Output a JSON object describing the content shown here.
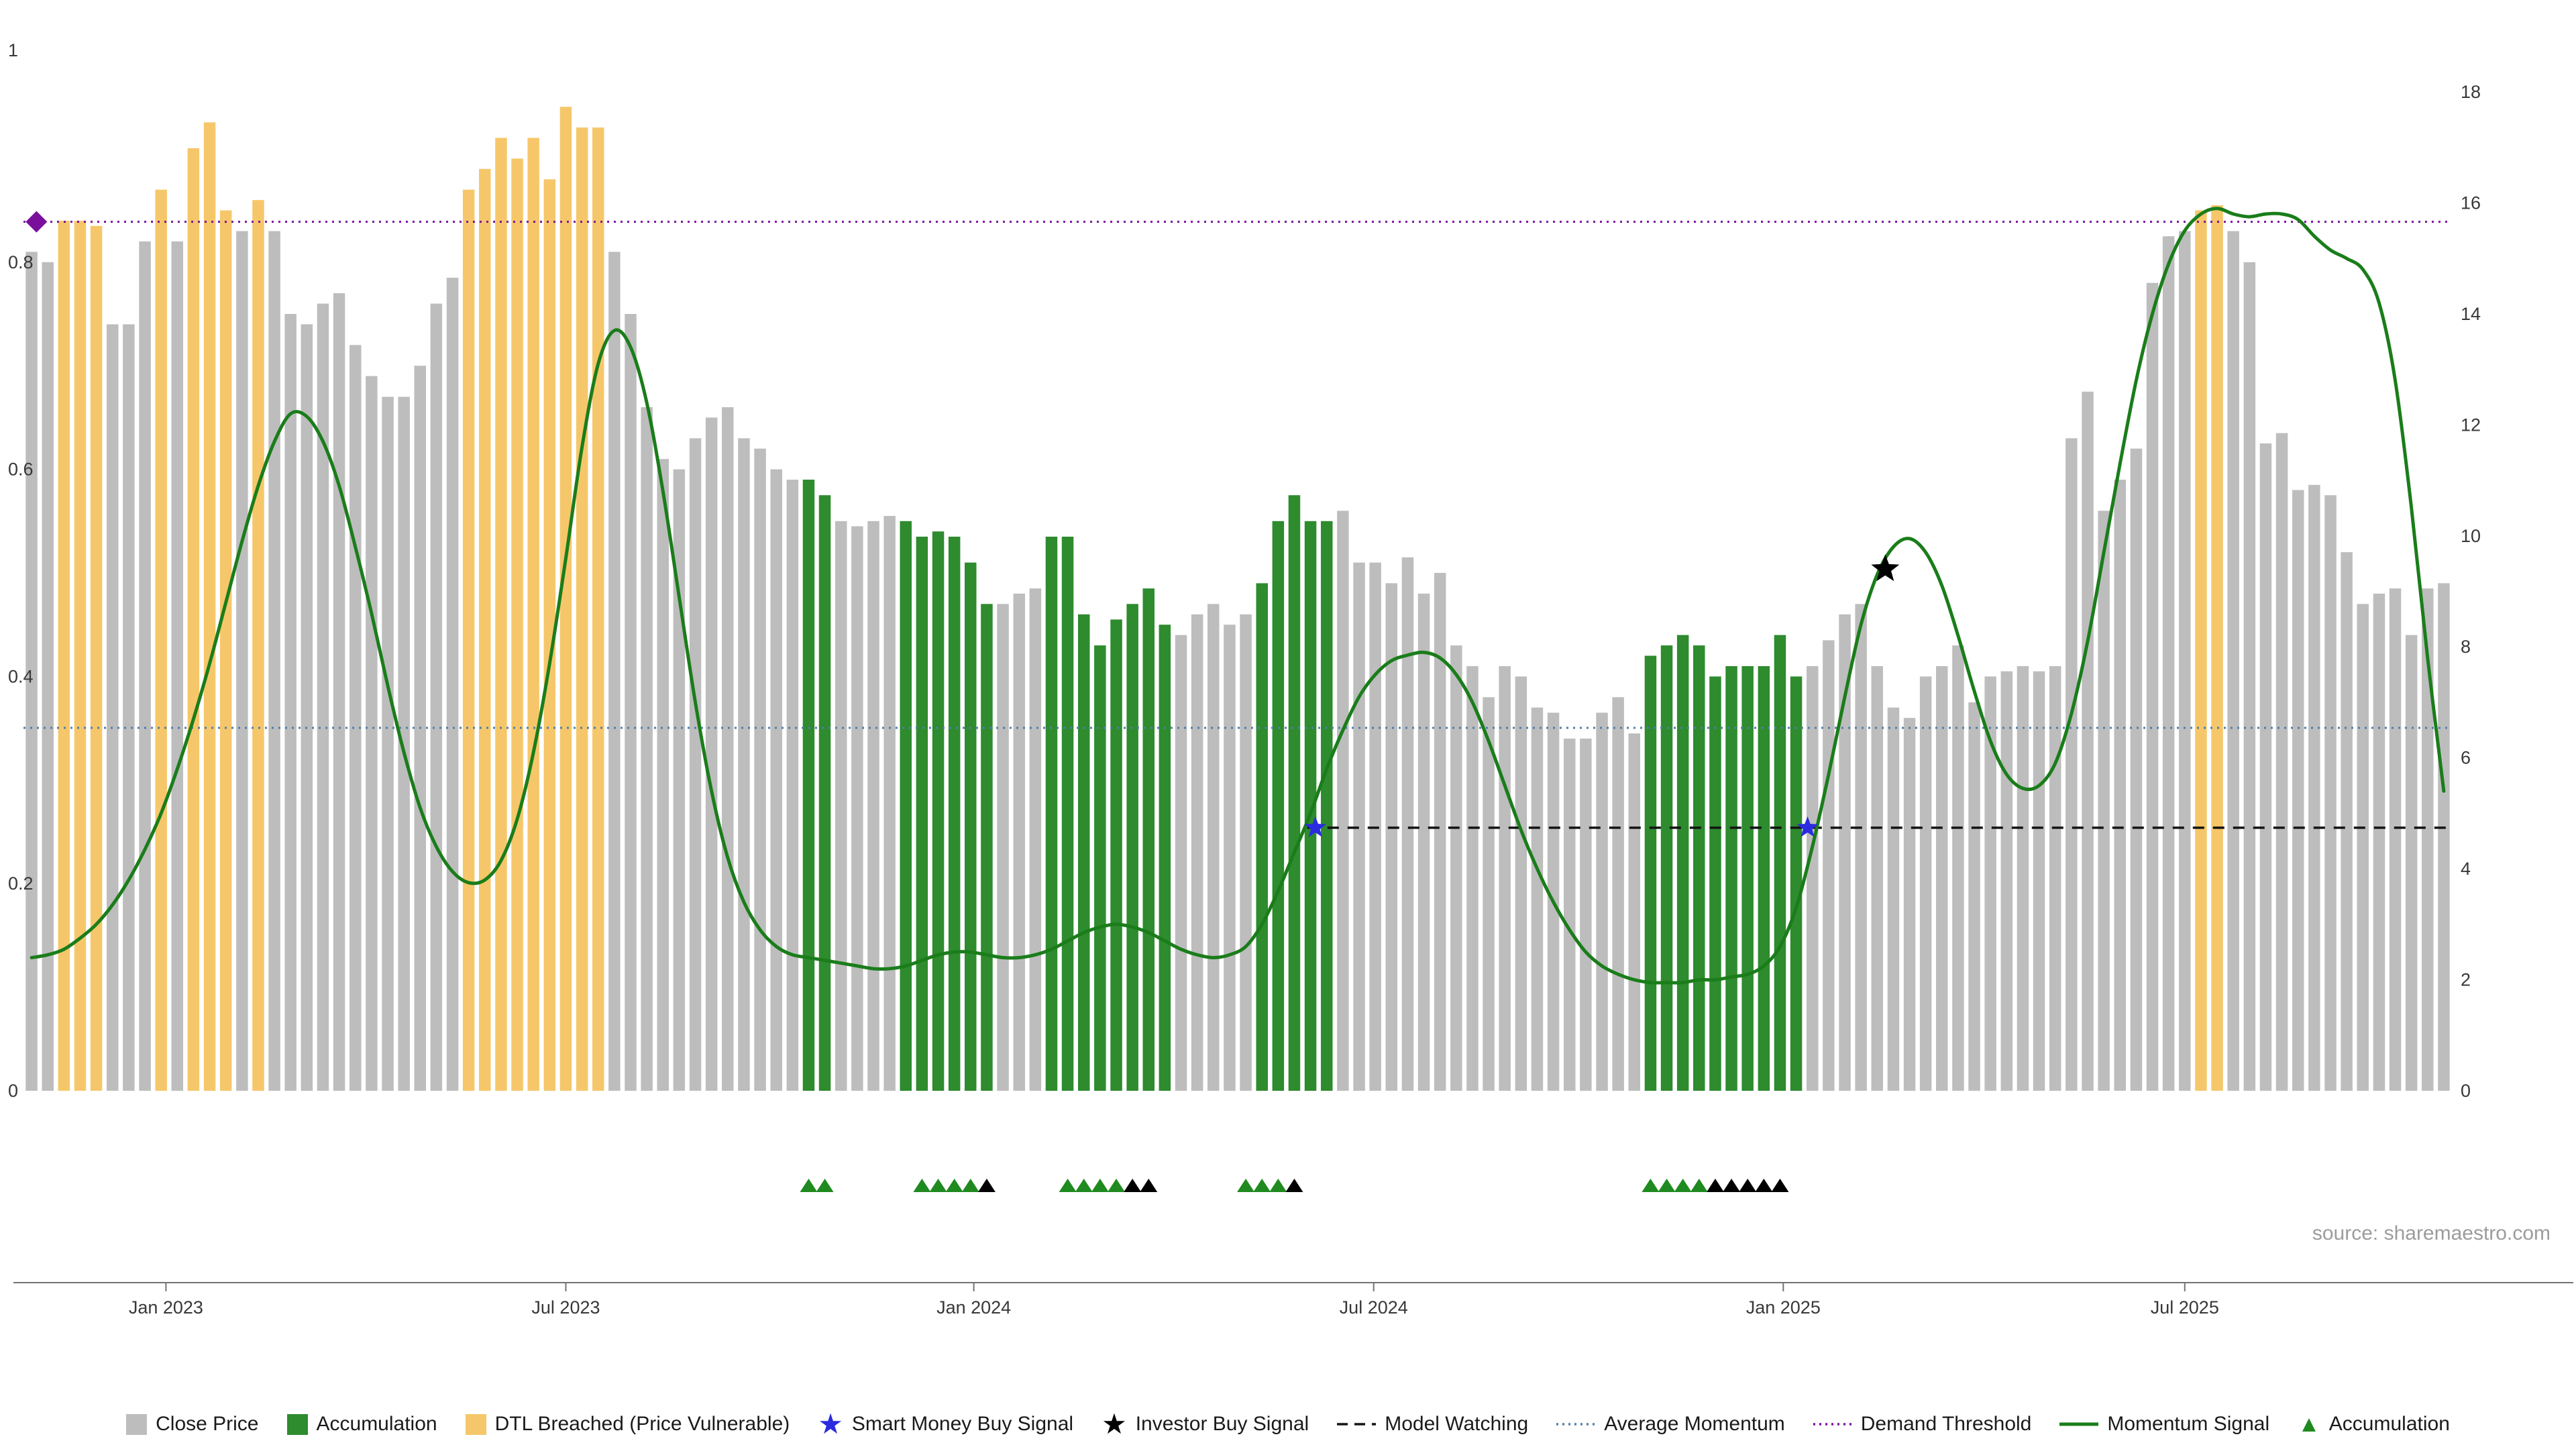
{
  "meta": {
    "source": "source: sharemaestro.com"
  },
  "palette": {
    "gray": "#bdbdbd",
    "green": "#2e8b2e",
    "orange": "#f6c76a",
    "momentum": "#1a7d1a",
    "smart_money": "#2b2bdf",
    "investor": "#000000",
    "demand": "#7a0f9c",
    "avg_momentum": "#4f7faa",
    "model_watching": "#141414",
    "triangle_green": "#1f8a1f",
    "triangle_black": "#000000",
    "axis_text": "#383838",
    "axis_line": "#737373"
  },
  "chart_data": {
    "type": "bar",
    "title": "",
    "axes": {
      "left": {
        "min": 0,
        "max": 1,
        "ticks": [
          0,
          0.2,
          0.4,
          0.6,
          0.8,
          1
        ]
      },
      "right": {
        "min": 0,
        "max": 18,
        "ticks": [
          0,
          2,
          4,
          6,
          8,
          10,
          12,
          14,
          16,
          18
        ]
      },
      "x": {
        "labels": [
          "Jan 2023",
          "Jul 2023",
          "Jan 2024",
          "Jul 2024",
          "Jan 2025",
          "Jul 2025"
        ],
        "positions": [
          8.3,
          33.0,
          58.2,
          82.9,
          108.2,
          133.0
        ]
      }
    },
    "bars": {
      "name": "Close Price",
      "axis": "left",
      "values": [
        0.81,
        0.8,
        0.84,
        0.84,
        0.835,
        0.74,
        0.74,
        0.82,
        0.87,
        0.82,
        0.91,
        0.935,
        0.85,
        0.83,
        0.86,
        0.83,
        0.75,
        0.74,
        0.76,
        0.77,
        0.72,
        0.69,
        0.67,
        0.67,
        0.7,
        0.76,
        0.785,
        0.87,
        0.89,
        0.92,
        0.9,
        0.92,
        0.88,
        0.95,
        0.93,
        0.93,
        0.81,
        0.75,
        0.66,
        0.61,
        0.6,
        0.63,
        0.65,
        0.66,
        0.63,
        0.62,
        0.6,
        0.59,
        0.59,
        0.575,
        0.55,
        0.545,
        0.55,
        0.555,
        0.55,
        0.535,
        0.54,
        0.535,
        0.51,
        0.47,
        0.47,
        0.48,
        0.485,
        0.535,
        0.535,
        0.46,
        0.43,
        0.455,
        0.47,
        0.485,
        0.45,
        0.44,
        0.46,
        0.47,
        0.45,
        0.46,
        0.49,
        0.55,
        0.575,
        0.55,
        0.55,
        0.56,
        0.51,
        0.51,
        0.49,
        0.515,
        0.48,
        0.5,
        0.43,
        0.41,
        0.38,
        0.41,
        0.4,
        0.37,
        0.365,
        0.34,
        0.34,
        0.365,
        0.38,
        0.345,
        0.42,
        0.43,
        0.44,
        0.43,
        0.4,
        0.41,
        0.41,
        0.41,
        0.44,
        0.4,
        0.41,
        0.435,
        0.46,
        0.47,
        0.41,
        0.37,
        0.36,
        0.4,
        0.41,
        0.43,
        0.375,
        0.4,
        0.405,
        0.41,
        0.405,
        0.41,
        0.63,
        0.675,
        0.56,
        0.59,
        0.62,
        0.78,
        0.825,
        0.83,
        0.85,
        0.855,
        0.83,
        0.8,
        0.625,
        0.635,
        0.58,
        0.585,
        0.575,
        0.52,
        0.47,
        0.48,
        0.485,
        0.44,
        0.485,
        0.49
      ],
      "colors": [
        "gray",
        "gray",
        "orange",
        "orange",
        "orange",
        "gray",
        "gray",
        "gray",
        "orange",
        "gray",
        "orange",
        "orange",
        "orange",
        "gray",
        "orange",
        "gray",
        "gray",
        "gray",
        "gray",
        "gray",
        "gray",
        "gray",
        "gray",
        "gray",
        "gray",
        "gray",
        "gray",
        "orange",
        "orange",
        "orange",
        "orange",
        "orange",
        "orange",
        "orange",
        "orange",
        "orange",
        "gray",
        "gray",
        "gray",
        "gray",
        "gray",
        "gray",
        "gray",
        "gray",
        "gray",
        "gray",
        "gray",
        "gray",
        "green",
        "green",
        "gray",
        "gray",
        "gray",
        "gray",
        "green",
        "green",
        "green",
        "green",
        "green",
        "green",
        "gray",
        "gray",
        "gray",
        "green",
        "green",
        "green",
        "green",
        "green",
        "green",
        "green",
        "green",
        "gray",
        "gray",
        "gray",
        "gray",
        "gray",
        "green",
        "green",
        "green",
        "green",
        "green",
        "gray",
        "gray",
        "gray",
        "gray",
        "gray",
        "gray",
        "gray",
        "gray",
        "gray",
        "gray",
        "gray",
        "gray",
        "gray",
        "gray",
        "gray",
        "gray",
        "gray",
        "gray",
        "gray",
        "green",
        "green",
        "green",
        "green",
        "green",
        "green",
        "green",
        "green",
        "green",
        "green",
        "gray",
        "gray",
        "gray",
        "gray",
        "gray",
        "gray",
        "gray",
        "gray",
        "gray",
        "gray",
        "gray",
        "gray",
        "gray",
        "gray",
        "gray",
        "gray",
        "gray",
        "gray",
        "gray",
        "gray",
        "gray",
        "gray",
        "gray",
        "gray",
        "orange",
        "orange",
        "gray",
        "gray",
        "gray",
        "gray",
        "gray",
        "gray",
        "gray",
        "gray",
        "gray",
        "gray",
        "gray",
        "gray",
        "gray",
        "gray"
      ],
      "color_meaning": {
        "gray": "Close Price",
        "green": "Accumulation",
        "orange": "DTL Breached (Price Vulnerable)"
      }
    },
    "momentum_line": {
      "name": "Momentum Signal",
      "axis": "right",
      "color_key": "momentum",
      "values": [
        2.4,
        2.45,
        2.55,
        2.75,
        3.0,
        3.35,
        3.8,
        4.35,
        5.0,
        5.8,
        6.7,
        7.7,
        8.8,
        9.9,
        10.9,
        11.7,
        12.2,
        12.15,
        11.7,
        10.9,
        9.8,
        8.6,
        7.3,
        6.1,
        5.1,
        4.4,
        3.95,
        3.75,
        3.8,
        4.15,
        4.9,
        6.1,
        7.7,
        9.6,
        11.6,
        13.1,
        13.7,
        13.4,
        12.4,
        10.8,
        8.9,
        7.0,
        5.4,
        4.2,
        3.4,
        2.9,
        2.6,
        2.45,
        2.4,
        2.35,
        2.3,
        2.25,
        2.2,
        2.2,
        2.25,
        2.35,
        2.45,
        2.5,
        2.5,
        2.45,
        2.4,
        2.4,
        2.45,
        2.55,
        2.7,
        2.85,
        2.95,
        3.0,
        2.95,
        2.85,
        2.7,
        2.55,
        2.45,
        2.4,
        2.45,
        2.6,
        3.0,
        3.6,
        4.3,
        5.0,
        5.8,
        6.5,
        7.1,
        7.5,
        7.75,
        7.85,
        7.9,
        7.8,
        7.5,
        7.0,
        6.3,
        5.5,
        4.7,
        4.0,
        3.4,
        2.9,
        2.5,
        2.25,
        2.1,
        2.0,
        1.95,
        1.95,
        1.95,
        2.0,
        2.0,
        2.05,
        2.1,
        2.25,
        2.6,
        3.3,
        4.4,
        5.7,
        7.1,
        8.4,
        9.3,
        9.8,
        9.95,
        9.7,
        9.1,
        8.2,
        7.2,
        6.3,
        5.7,
        5.45,
        5.5,
        5.9,
        6.8,
        8.1,
        9.7,
        11.3,
        12.8,
        14.0,
        14.9,
        15.5,
        15.8,
        15.9,
        15.8,
        15.75,
        15.8,
        15.8,
        15.7,
        15.4,
        15.15,
        15.0,
        14.8,
        14.2,
        12.8,
        10.5,
        7.8,
        5.4
      ]
    },
    "hlines": [
      {
        "name": "Demand Threshold",
        "value": 15.66,
        "axis": "right",
        "style": "dotted",
        "color_key": "demand",
        "from_bar": 0
      },
      {
        "name": "Average Momentum",
        "value": 6.54,
        "axis": "right",
        "style": "dotted",
        "color_key": "avg_momentum",
        "from_bar": 0
      },
      {
        "name": "Model Watching",
        "value": 4.74,
        "axis": "right",
        "style": "dashed",
        "color_key": "model_watching",
        "from_bar": 79.3
      }
    ],
    "markers": {
      "smart_money_buy": {
        "name": "Smart Money Buy Signal",
        "symbol": "star",
        "color_key": "smart_money",
        "points": [
          {
            "bar": 79.3,
            "value": 4.74
          },
          {
            "bar": 109.7,
            "value": 4.74
          }
        ]
      },
      "investor_buy": {
        "name": "Investor Buy Signal",
        "symbol": "star",
        "color_key": "investor",
        "points": [
          {
            "bar": 114.5,
            "value": 9.4
          }
        ]
      },
      "demand_threshold_marker": {
        "name": "Demand Threshold Marker",
        "symbol": "diamond",
        "color_key": "demand",
        "points": [
          {
            "bar": 0.3,
            "value": 15.66
          }
        ]
      },
      "accumulation_triangles": {
        "name": "Accumulation",
        "symbol": "triangle",
        "points": [
          {
            "bar": 48,
            "color": "triangle_green"
          },
          {
            "bar": 49,
            "color": "triangle_green"
          },
          {
            "bar": 55,
            "color": "triangle_green"
          },
          {
            "bar": 56,
            "color": "triangle_green"
          },
          {
            "bar": 57,
            "color": "triangle_green"
          },
          {
            "bar": 58,
            "color": "triangle_green"
          },
          {
            "bar": 59,
            "color": "triangle_black"
          },
          {
            "bar": 64,
            "color": "triangle_green"
          },
          {
            "bar": 65,
            "color": "triangle_green"
          },
          {
            "bar": 66,
            "color": "triangle_green"
          },
          {
            "bar": 67,
            "color": "triangle_green"
          },
          {
            "bar": 68,
            "color": "triangle_black"
          },
          {
            "bar": 69,
            "color": "triangle_black"
          },
          {
            "bar": 75,
            "color": "triangle_green"
          },
          {
            "bar": 76,
            "color": "triangle_green"
          },
          {
            "bar": 77,
            "color": "triangle_green"
          },
          {
            "bar": 78,
            "color": "triangle_black"
          },
          {
            "bar": 100,
            "color": "triangle_green"
          },
          {
            "bar": 101,
            "color": "triangle_green"
          },
          {
            "bar": 102,
            "color": "triangle_green"
          },
          {
            "bar": 103,
            "color": "triangle_green"
          },
          {
            "bar": 104,
            "color": "triangle_black"
          },
          {
            "bar": 105,
            "color": "triangle_black"
          },
          {
            "bar": 106,
            "color": "triangle_black"
          },
          {
            "bar": 107,
            "color": "triangle_black"
          },
          {
            "bar": 108,
            "color": "triangle_black"
          }
        ]
      }
    }
  },
  "legend": {
    "items": [
      {
        "label": "Close Price",
        "swatch": "square",
        "color": "#bdbdbd"
      },
      {
        "label": "Accumulation",
        "swatch": "square",
        "color": "#2e8b2e"
      },
      {
        "label": "DTL Breached (Price Vulnerable)",
        "swatch": "square",
        "color": "#f6c76a"
      },
      {
        "label": "Smart Money Buy Signal",
        "swatch": "star",
        "color": "#2b2bdf"
      },
      {
        "label": "Investor Buy Signal",
        "swatch": "star",
        "color": "#000000"
      },
      {
        "label": "Model Watching",
        "swatch": "dashed-line",
        "color": "#141414"
      },
      {
        "label": "Average Momentum",
        "swatch": "dotted-line",
        "color": "#4f7faa"
      },
      {
        "label": "Demand Threshold",
        "swatch": "dotted-line",
        "color": "#7a0f9c"
      },
      {
        "label": "Momentum Signal",
        "swatch": "solid-line",
        "color": "#1a7d1a"
      },
      {
        "label": "Accumulation",
        "swatch": "triangle",
        "color": "#1f8a1f"
      }
    ]
  }
}
